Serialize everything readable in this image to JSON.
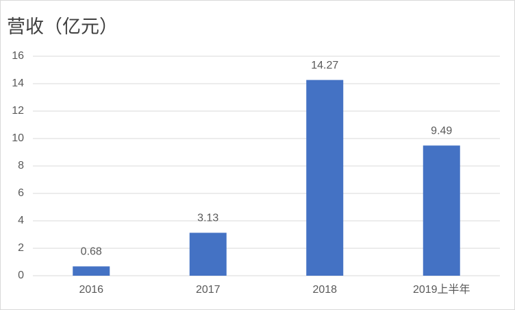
{
  "chart_data": {
    "type": "bar",
    "title": "营收（亿元）",
    "categories": [
      "2016",
      "2017",
      "2018",
      "2019上半年"
    ],
    "values": [
      0.68,
      3.13,
      14.27,
      9.49
    ],
    "color": "#4472c4",
    "ylim": [
      0,
      16
    ],
    "yticks": [
      0,
      2,
      4,
      6,
      8,
      10,
      12,
      14,
      16
    ],
    "grid": true
  }
}
